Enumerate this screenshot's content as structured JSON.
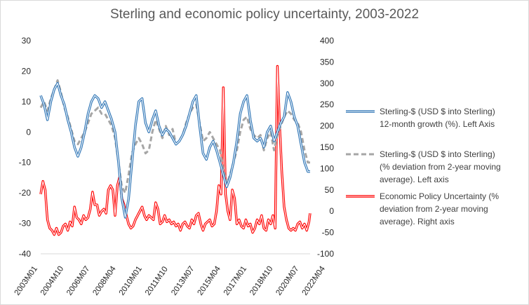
{
  "chart_data": {
    "type": "line",
    "title": "Sterling and economic policy uncertainty, 2003-2022",
    "x_start": "2003-01",
    "x_end": "2022-12",
    "x_tick_labels": [
      "2003M01",
      "2004M10",
      "2006M07",
      "2008M04",
      "2010M01",
      "2011M10",
      "2013M07",
      "2015M04",
      "2017M01",
      "2018M10",
      "2020M07",
      "2022M04"
    ],
    "left_axis": {
      "ylim": [
        -40,
        30
      ],
      "ticks": [
        "30",
        "20",
        "10",
        "0",
        "-10",
        "-20",
        "-30",
        "-40"
      ]
    },
    "right_axis": {
      "ylim": [
        -100,
        400
      ],
      "ticks": [
        "400",
        "350",
        "300",
        "250",
        "200",
        "150",
        "100",
        "50",
        "0",
        "-50",
        "-100"
      ]
    },
    "grid": false,
    "legend_position": "right",
    "series": [
      {
        "name": "Sterling-$ (USD $ into Sterling) 12-month growth (%). Left Axis",
        "legend_lines": [
          "Sterling-$ (USD $ into Sterling)",
          "12-month growth (%). Left Axis"
        ],
        "axis": "left",
        "style": "double-line",
        "color": "#2E75B6",
        "points": [
          [
            "2003-01",
            12
          ],
          [
            "2003-04",
            9
          ],
          [
            "2003-07",
            4
          ],
          [
            "2003-10",
            10
          ],
          [
            "2004-01",
            14
          ],
          [
            "2004-04",
            16
          ],
          [
            "2004-07",
            12
          ],
          [
            "2004-10",
            9
          ],
          [
            "2005-01",
            4
          ],
          [
            "2005-04",
            0
          ],
          [
            "2005-07",
            -5
          ],
          [
            "2005-10",
            -8
          ],
          [
            "2006-01",
            -5
          ],
          [
            "2006-04",
            0
          ],
          [
            "2006-07",
            6
          ],
          [
            "2006-10",
            10
          ],
          [
            "2007-01",
            12
          ],
          [
            "2007-04",
            11
          ],
          [
            "2007-07",
            8
          ],
          [
            "2007-10",
            10
          ],
          [
            "2008-01",
            7
          ],
          [
            "2008-04",
            4
          ],
          [
            "2008-07",
            0
          ],
          [
            "2008-10",
            -10
          ],
          [
            "2009-01",
            -22
          ],
          [
            "2009-04",
            -28
          ],
          [
            "2009-07",
            -22
          ],
          [
            "2009-10",
            -10
          ],
          [
            "2010-01",
            2
          ],
          [
            "2010-04",
            10
          ],
          [
            "2010-07",
            11
          ],
          [
            "2010-10",
            3
          ],
          [
            "2011-01",
            0
          ],
          [
            "2011-04",
            4
          ],
          [
            "2011-07",
            7
          ],
          [
            "2011-10",
            2
          ],
          [
            "2012-01",
            -1
          ],
          [
            "2012-04",
            1
          ],
          [
            "2012-07",
            0
          ],
          [
            "2012-10",
            -2
          ],
          [
            "2013-01",
            -4
          ],
          [
            "2013-04",
            -3
          ],
          [
            "2013-07",
            -1
          ],
          [
            "2013-10",
            2
          ],
          [
            "2014-01",
            6
          ],
          [
            "2014-04",
            10
          ],
          [
            "2014-07",
            12
          ],
          [
            "2014-10",
            2
          ],
          [
            "2015-01",
            -7
          ],
          [
            "2015-04",
            -9
          ],
          [
            "2015-07",
            -5
          ],
          [
            "2015-10",
            -3
          ],
          [
            "2016-01",
            -6
          ],
          [
            "2016-04",
            -10
          ],
          [
            "2016-07",
            -14
          ],
          [
            "2016-10",
            -18
          ],
          [
            "2017-01",
            -15
          ],
          [
            "2017-04",
            -10
          ],
          [
            "2017-07",
            -3
          ],
          [
            "2017-10",
            6
          ],
          [
            "2018-01",
            10
          ],
          [
            "2018-04",
            12
          ],
          [
            "2018-07",
            4
          ],
          [
            "2018-10",
            -2
          ],
          [
            "2019-01",
            -3
          ],
          [
            "2019-04",
            -2
          ],
          [
            "2019-07",
            -5
          ],
          [
            "2019-10",
            0
          ],
          [
            "2020-01",
            2
          ],
          [
            "2020-04",
            -3
          ],
          [
            "2020-07",
            0
          ],
          [
            "2020-10",
            3
          ],
          [
            "2021-01",
            5
          ],
          [
            "2021-04",
            13
          ],
          [
            "2021-07",
            10
          ],
          [
            "2021-10",
            5
          ],
          [
            "2022-01",
            2
          ],
          [
            "2022-04",
            -4
          ],
          [
            "2022-07",
            -10
          ],
          [
            "2022-10",
            -13
          ],
          [
            "2022-12",
            -13
          ]
        ]
      },
      {
        "name": "Sterling-$ (USD $ into Sterling) (% deviation from 2-year moving average). Left axis",
        "legend_lines": [
          "Sterling-$ (USD $ into Sterling)",
          "(% deviation from 2-year moving",
          "average). Left axis"
        ],
        "axis": "left",
        "style": "dashed",
        "color": "#A6A6A6",
        "points": [
          [
            "2003-01",
            8
          ],
          [
            "2003-04",
            10
          ],
          [
            "2003-07",
            7
          ],
          [
            "2003-10",
            11
          ],
          [
            "2004-01",
            14
          ],
          [
            "2004-04",
            17
          ],
          [
            "2004-07",
            13
          ],
          [
            "2004-10",
            8
          ],
          [
            "2005-01",
            5
          ],
          [
            "2005-04",
            1
          ],
          [
            "2005-07",
            -3
          ],
          [
            "2005-10",
            -4
          ],
          [
            "2006-01",
            -2
          ],
          [
            "2006-04",
            0
          ],
          [
            "2006-07",
            3
          ],
          [
            "2006-10",
            6
          ],
          [
            "2007-01",
            7
          ],
          [
            "2007-04",
            8
          ],
          [
            "2007-07",
            6
          ],
          [
            "2007-10",
            6
          ],
          [
            "2008-01",
            4
          ],
          [
            "2008-04",
            2
          ],
          [
            "2008-07",
            -2
          ],
          [
            "2008-10",
            -10
          ],
          [
            "2009-01",
            -18
          ],
          [
            "2009-04",
            -20
          ],
          [
            "2009-07",
            -14
          ],
          [
            "2009-10",
            -7
          ],
          [
            "2010-01",
            -4
          ],
          [
            "2010-04",
            -2
          ],
          [
            "2010-07",
            -4
          ],
          [
            "2010-10",
            -7
          ],
          [
            "2011-01",
            -6
          ],
          [
            "2011-04",
            0
          ],
          [
            "2011-07",
            4
          ],
          [
            "2011-10",
            1
          ],
          [
            "2012-01",
            -2
          ],
          [
            "2012-04",
            2
          ],
          [
            "2012-07",
            -1
          ],
          [
            "2012-10",
            1
          ],
          [
            "2013-01",
            -4
          ],
          [
            "2013-04",
            -3
          ],
          [
            "2013-07",
            -1
          ],
          [
            "2013-10",
            3
          ],
          [
            "2014-01",
            6
          ],
          [
            "2014-04",
            8
          ],
          [
            "2014-07",
            9
          ],
          [
            "2014-10",
            3
          ],
          [
            "2015-01",
            -3
          ],
          [
            "2015-04",
            -2
          ],
          [
            "2015-07",
            0
          ],
          [
            "2015-10",
            -2
          ],
          [
            "2016-01",
            -4
          ],
          [
            "2016-04",
            -6
          ],
          [
            "2016-07",
            -12
          ],
          [
            "2016-10",
            -17
          ],
          [
            "2017-01",
            -14
          ],
          [
            "2017-04",
            -10
          ],
          [
            "2017-07",
            -6
          ],
          [
            "2017-10",
            0
          ],
          [
            "2018-01",
            4
          ],
          [
            "2018-04",
            5
          ],
          [
            "2018-07",
            1
          ],
          [
            "2018-10",
            -1
          ],
          [
            "2019-01",
            -2
          ],
          [
            "2019-04",
            -1
          ],
          [
            "2019-07",
            -6
          ],
          [
            "2019-10",
            -2
          ],
          [
            "2020-01",
            0
          ],
          [
            "2020-04",
            -6
          ],
          [
            "2020-07",
            -1
          ],
          [
            "2020-10",
            2
          ],
          [
            "2021-01",
            5
          ],
          [
            "2021-04",
            7
          ],
          [
            "2021-07",
            6
          ],
          [
            "2021-10",
            4
          ],
          [
            "2022-01",
            3
          ],
          [
            "2022-04",
            0
          ],
          [
            "2022-07",
            -6
          ],
          [
            "2022-10",
            -10
          ],
          [
            "2022-12",
            -10
          ]
        ]
      },
      {
        "name": "Economic Policy Uncertainty (% deviation from 2-year moving average). Right axis",
        "legend_lines": [
          "Economic Policy Uncertainty (%",
          "deviation from 2-year moving",
          "average). Right axis"
        ],
        "axis": "right",
        "style": "double-line",
        "color": "#FF0000",
        "points": [
          [
            "2003-01",
            40
          ],
          [
            "2003-03",
            70
          ],
          [
            "2003-05",
            50
          ],
          [
            "2003-07",
            -20
          ],
          [
            "2003-09",
            -40
          ],
          [
            "2003-11",
            -45
          ],
          [
            "2004-01",
            -55
          ],
          [
            "2004-03",
            -40
          ],
          [
            "2004-05",
            -55
          ],
          [
            "2004-07",
            -50
          ],
          [
            "2004-09",
            -35
          ],
          [
            "2004-11",
            -30
          ],
          [
            "2005-01",
            -45
          ],
          [
            "2005-03",
            -25
          ],
          [
            "2005-05",
            -35
          ],
          [
            "2005-07",
            10
          ],
          [
            "2005-09",
            -15
          ],
          [
            "2005-11",
            -20
          ],
          [
            "2006-01",
            -30
          ],
          [
            "2006-03",
            -10
          ],
          [
            "2006-05",
            -20
          ],
          [
            "2006-07",
            -15
          ],
          [
            "2006-09",
            5
          ],
          [
            "2006-11",
            45
          ],
          [
            "2007-01",
            15
          ],
          [
            "2007-03",
            15
          ],
          [
            "2007-05",
            -10
          ],
          [
            "2007-07",
            0
          ],
          [
            "2007-09",
            5
          ],
          [
            "2007-11",
            -5
          ],
          [
            "2008-01",
            50
          ],
          [
            "2008-03",
            60
          ],
          [
            "2008-05",
            50
          ],
          [
            "2008-07",
            -10
          ],
          [
            "2008-09",
            60
          ],
          [
            "2008-11",
            80
          ],
          [
            "2009-01",
            30
          ],
          [
            "2009-03",
            15
          ],
          [
            "2009-05",
            -10
          ],
          [
            "2009-07",
            -30
          ],
          [
            "2009-09",
            -40
          ],
          [
            "2009-11",
            -35
          ],
          [
            "2010-01",
            -20
          ],
          [
            "2010-03",
            -10
          ],
          [
            "2010-05",
            0
          ],
          [
            "2010-07",
            10
          ],
          [
            "2010-09",
            -10
          ],
          [
            "2010-11",
            -20
          ],
          [
            "2011-01",
            -10
          ],
          [
            "2011-03",
            -15
          ],
          [
            "2011-05",
            -20
          ],
          [
            "2011-07",
            20
          ],
          [
            "2011-09",
            5
          ],
          [
            "2011-11",
            -30
          ],
          [
            "2012-01",
            -25
          ],
          [
            "2012-03",
            -10
          ],
          [
            "2012-05",
            -25
          ],
          [
            "2012-07",
            -20
          ],
          [
            "2012-09",
            -30
          ],
          [
            "2012-11",
            -25
          ],
          [
            "2013-01",
            -35
          ],
          [
            "2013-03",
            -30
          ],
          [
            "2013-05",
            -45
          ],
          [
            "2013-07",
            -30
          ],
          [
            "2013-09",
            -25
          ],
          [
            "2013-11",
            -35
          ],
          [
            "2014-01",
            -40
          ],
          [
            "2014-03",
            -20
          ],
          [
            "2014-05",
            -30
          ],
          [
            "2014-07",
            -10
          ],
          [
            "2014-09",
            -5
          ],
          [
            "2014-11",
            -30
          ],
          [
            "2015-01",
            -45
          ],
          [
            "2015-03",
            -30
          ],
          [
            "2015-05",
            -25
          ],
          [
            "2015-07",
            -20
          ],
          [
            "2015-09",
            -35
          ],
          [
            "2015-11",
            -30
          ],
          [
            "2016-01",
            0
          ],
          [
            "2016-03",
            60
          ],
          [
            "2016-05",
            40
          ],
          [
            "2016-07",
            290
          ],
          [
            "2016-09",
            40
          ],
          [
            "2016-11",
            0
          ],
          [
            "2017-01",
            -20
          ],
          [
            "2017-03",
            50
          ],
          [
            "2017-05",
            30
          ],
          [
            "2017-07",
            -30
          ],
          [
            "2017-09",
            -20
          ],
          [
            "2017-11",
            -35
          ],
          [
            "2018-01",
            -40
          ],
          [
            "2018-03",
            -20
          ],
          [
            "2018-05",
            -35
          ],
          [
            "2018-07",
            -30
          ],
          [
            "2018-09",
            -50
          ],
          [
            "2018-11",
            -40
          ],
          [
            "2019-01",
            -20
          ],
          [
            "2019-03",
            -30
          ],
          [
            "2019-05",
            -10
          ],
          [
            "2019-07",
            -40
          ],
          [
            "2019-09",
            -45
          ],
          [
            "2019-11",
            -20
          ],
          [
            "2020-01",
            -30
          ],
          [
            "2020-03",
            -10
          ],
          [
            "2020-05",
            -40
          ],
          [
            "2020-07",
            340
          ],
          [
            "2020-09",
            200
          ],
          [
            "2020-11",
            90
          ],
          [
            "2021-01",
            10
          ],
          [
            "2021-03",
            -20
          ],
          [
            "2021-05",
            -40
          ],
          [
            "2021-07",
            -45
          ],
          [
            "2021-09",
            -40
          ],
          [
            "2021-11",
            -45
          ],
          [
            "2022-01",
            -30
          ],
          [
            "2022-03",
            -25
          ],
          [
            "2022-05",
            -40
          ],
          [
            "2022-07",
            -30
          ],
          [
            "2022-09",
            -45
          ],
          [
            "2022-11",
            -25
          ],
          [
            "2022-12",
            -5
          ]
        ]
      }
    ]
  }
}
